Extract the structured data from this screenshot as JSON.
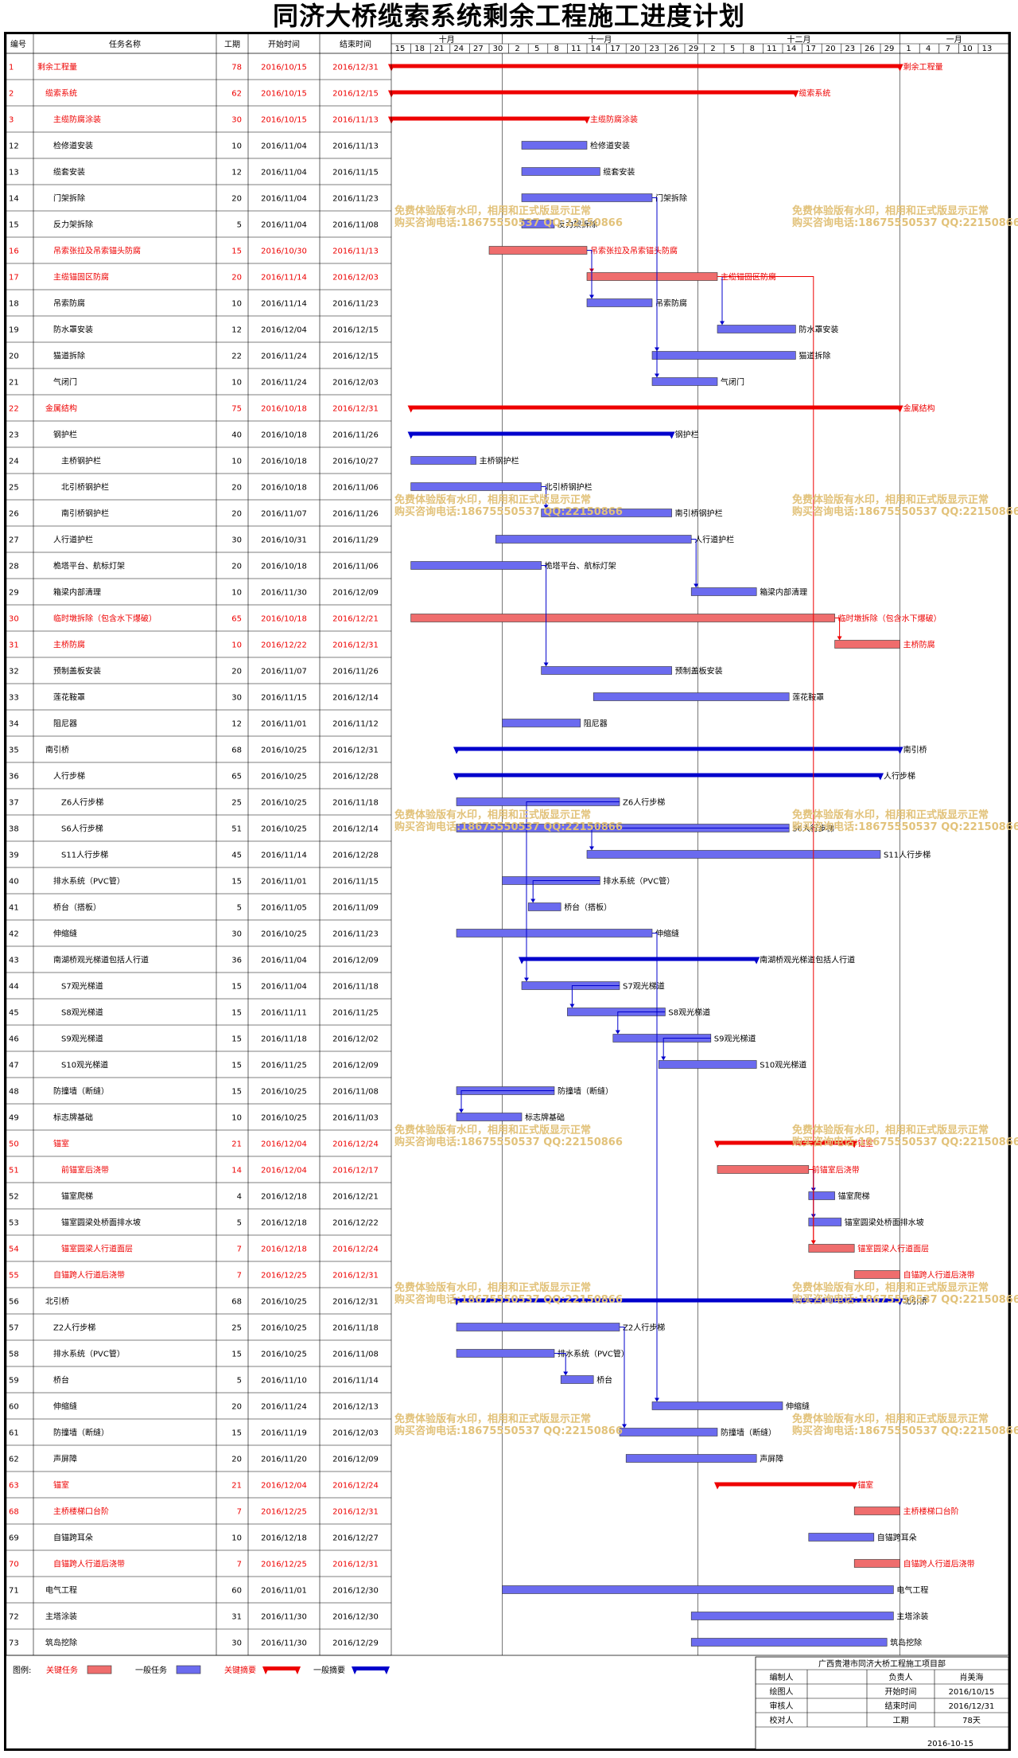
{
  "page": {
    "title": "同济大桥缆索系统剩余工程施工进度计划"
  },
  "headers": {
    "id": "编号",
    "name": "任务名称",
    "duration": "工期",
    "start": "开始时间",
    "end": "结束时间"
  },
  "colors": {
    "critical_task": "#ef6d6d",
    "normal_task": "#6b6bef",
    "critical_summary": "#ee0000",
    "normal_summary": "#0000cc",
    "critical_text": "#ee0000",
    "link_red": "#ee0000",
    "link_blue": "#0000cc"
  },
  "chart_data": {
    "type": "gantt",
    "months": [
      {
        "label": "十月",
        "date": "2016-10-01"
      },
      {
        "label": "十一月",
        "date": "2016-11-01"
      },
      {
        "label": "十二月",
        "date": "2016-12-01"
      },
      {
        "label": "一月",
        "date": "2017-01-01"
      }
    ],
    "ticks": [
      {
        "label": "15",
        "date": "2016-10-15"
      },
      {
        "label": "18",
        "date": "2016-10-18"
      },
      {
        "label": "21",
        "date": "2016-10-21"
      },
      {
        "label": "24",
        "date": "2016-10-24"
      },
      {
        "label": "27",
        "date": "2016-10-27"
      },
      {
        "label": "30",
        "date": "2016-10-30"
      },
      {
        "label": "2",
        "date": "2016-11-02"
      },
      {
        "label": "5",
        "date": "2016-11-05"
      },
      {
        "label": "8",
        "date": "2016-11-08"
      },
      {
        "label": "11",
        "date": "2016-11-11"
      },
      {
        "label": "14",
        "date": "2016-11-14"
      },
      {
        "label": "17",
        "date": "2016-11-17"
      },
      {
        "label": "20",
        "date": "2016-11-20"
      },
      {
        "label": "23",
        "date": "2016-11-23"
      },
      {
        "label": "26",
        "date": "2016-11-26"
      },
      {
        "label": "29",
        "date": "2016-11-29"
      },
      {
        "label": "2",
        "date": "2016-12-02"
      },
      {
        "label": "5",
        "date": "2016-12-05"
      },
      {
        "label": "8",
        "date": "2016-12-08"
      },
      {
        "label": "11",
        "date": "2016-12-11"
      },
      {
        "label": "14",
        "date": "2016-12-14"
      },
      {
        "label": "17",
        "date": "2016-12-17"
      },
      {
        "label": "20",
        "date": "2016-12-20"
      },
      {
        "label": "23",
        "date": "2016-12-23"
      },
      {
        "label": "26",
        "date": "2016-12-26"
      },
      {
        "label": "29",
        "date": "2016-12-29"
      },
      {
        "label": "1",
        "date": "2017-01-01"
      },
      {
        "label": "4",
        "date": "2017-01-04"
      },
      {
        "label": "7",
        "date": "2017-01-07"
      },
      {
        "label": "10",
        "date": "2017-01-10"
      },
      {
        "label": "13",
        "date": "2017-01-13"
      }
    ],
    "tasks": [
      {
        "id": "1",
        "name": "剩余工程量",
        "dur": "78",
        "start": "2016/10/15",
        "end": "2016/12/31",
        "kind": "cs",
        "indent": 0
      },
      {
        "id": "2",
        "name": "缆索系统",
        "dur": "62",
        "start": "2016/10/15",
        "end": "2016/12/15",
        "kind": "cs",
        "indent": 1
      },
      {
        "id": "3",
        "name": "主缆防腐涂装",
        "dur": "30",
        "start": "2016/10/15",
        "end": "2016/11/13",
        "kind": "cs",
        "indent": 2
      },
      {
        "id": "12",
        "name": "检修道安装",
        "dur": "10",
        "start": "2016/11/04",
        "end": "2016/11/13",
        "kind": "n",
        "indent": 2
      },
      {
        "id": "13",
        "name": "缆套安装",
        "dur": "12",
        "start": "2016/11/04",
        "end": "2016/11/15",
        "kind": "n",
        "indent": 2
      },
      {
        "id": "14",
        "name": "门架拆除",
        "dur": "20",
        "start": "2016/11/04",
        "end": "2016/11/23",
        "kind": "n",
        "indent": 2
      },
      {
        "id": "15",
        "name": "反力架拆除",
        "dur": "5",
        "start": "2016/11/04",
        "end": "2016/11/08",
        "kind": "n",
        "indent": 2
      },
      {
        "id": "16",
        "name": "吊索张拉及吊索锚头防腐",
        "dur": "15",
        "start": "2016/10/30",
        "end": "2016/11/13",
        "kind": "c",
        "indent": 2
      },
      {
        "id": "17",
        "name": "主缆锚固区防腐",
        "dur": "20",
        "start": "2016/11/14",
        "end": "2016/12/03",
        "kind": "c",
        "indent": 2
      },
      {
        "id": "18",
        "name": "吊索防腐",
        "dur": "10",
        "start": "2016/11/14",
        "end": "2016/11/23",
        "kind": "n",
        "indent": 2
      },
      {
        "id": "19",
        "name": "防水罩安装",
        "dur": "12",
        "start": "2016/12/04",
        "end": "2016/12/15",
        "kind": "n",
        "indent": 2
      },
      {
        "id": "20",
        "name": "猫道拆除",
        "dur": "22",
        "start": "2016/11/24",
        "end": "2016/12/15",
        "kind": "n",
        "indent": 2
      },
      {
        "id": "21",
        "name": "气闭门",
        "dur": "10",
        "start": "2016/11/24",
        "end": "2016/12/03",
        "kind": "n",
        "indent": 2
      },
      {
        "id": "22",
        "name": "金属结构",
        "dur": "75",
        "start": "2016/10/18",
        "end": "2016/12/31",
        "kind": "cs",
        "indent": 1
      },
      {
        "id": "23",
        "name": "钢护栏",
        "dur": "40",
        "start": "2016/10/18",
        "end": "2016/11/26",
        "kind": "ns",
        "indent": 2
      },
      {
        "id": "24",
        "name": "主桥钢护栏",
        "dur": "10",
        "start": "2016/10/18",
        "end": "2016/10/27",
        "kind": "n",
        "indent": 3
      },
      {
        "id": "25",
        "name": "北引桥钢护栏",
        "dur": "20",
        "start": "2016/10/18",
        "end": "2016/11/06",
        "kind": "n",
        "indent": 3
      },
      {
        "id": "26",
        "name": "南引桥钢护栏",
        "dur": "20",
        "start": "2016/11/07",
        "end": "2016/11/26",
        "kind": "n",
        "indent": 3
      },
      {
        "id": "27",
        "name": "人行道护栏",
        "dur": "30",
        "start": "2016/10/31",
        "end": "2016/11/29",
        "kind": "n",
        "indent": 2
      },
      {
        "id": "28",
        "name": "桅塔平台、航标灯架",
        "dur": "20",
        "start": "2016/10/18",
        "end": "2016/11/06",
        "kind": "n",
        "indent": 2
      },
      {
        "id": "29",
        "name": "箱梁内部清理",
        "dur": "10",
        "start": "2016/11/30",
        "end": "2016/12/09",
        "kind": "n",
        "indent": 2
      },
      {
        "id": "30",
        "name": "临时墩拆除（包含水下爆破）",
        "dur": "65",
        "start": "2016/10/18",
        "end": "2016/12/21",
        "kind": "c",
        "indent": 2
      },
      {
        "id": "31",
        "name": "主桥防腐",
        "dur": "10",
        "start": "2016/12/22",
        "end": "2016/12/31",
        "kind": "c",
        "indent": 2
      },
      {
        "id": "32",
        "name": "预制盖板安装",
        "dur": "20",
        "start": "2016/11/07",
        "end": "2016/11/26",
        "kind": "n",
        "indent": 2
      },
      {
        "id": "33",
        "name": "莲花鞍罩",
        "dur": "30",
        "start": "2016/11/15",
        "end": "2016/12/14",
        "kind": "n",
        "indent": 2
      },
      {
        "id": "34",
        "name": "阻尼器",
        "dur": "12",
        "start": "2016/11/01",
        "end": "2016/11/12",
        "kind": "n",
        "indent": 2
      },
      {
        "id": "35",
        "name": "南引桥",
        "dur": "68",
        "start": "2016/10/25",
        "end": "2016/12/31",
        "kind": "ns",
        "indent": 1
      },
      {
        "id": "36",
        "name": "人行步梯",
        "dur": "65",
        "start": "2016/10/25",
        "end": "2016/12/28",
        "kind": "ns",
        "indent": 2
      },
      {
        "id": "37",
        "name": "Z6人行步梯",
        "dur": "25",
        "start": "2016/10/25",
        "end": "2016/11/18",
        "kind": "n",
        "indent": 3
      },
      {
        "id": "38",
        "name": "S6人行步梯",
        "dur": "51",
        "start": "2016/10/25",
        "end": "2016/12/14",
        "kind": "n",
        "indent": 3
      },
      {
        "id": "39",
        "name": "S11人行步梯",
        "dur": "45",
        "start": "2016/11/14",
        "end": "2016/12/28",
        "kind": "n",
        "indent": 3
      },
      {
        "id": "40",
        "name": "排水系统（PVC管）",
        "dur": "15",
        "start": "2016/11/01",
        "end": "2016/11/15",
        "kind": "n",
        "indent": 2
      },
      {
        "id": "41",
        "name": "桥台（搭板）",
        "dur": "5",
        "start": "2016/11/05",
        "end": "2016/11/09",
        "kind": "n",
        "indent": 2
      },
      {
        "id": "42",
        "name": "伸缩缝",
        "dur": "30",
        "start": "2016/10/25",
        "end": "2016/11/23",
        "kind": "n",
        "indent": 2
      },
      {
        "id": "43",
        "name": "南湖桥观光梯道包括人行道",
        "dur": "36",
        "start": "2016/11/04",
        "end": "2016/12/09",
        "kind": "ns",
        "indent": 2
      },
      {
        "id": "44",
        "name": "S7观光梯道",
        "dur": "15",
        "start": "2016/11/04",
        "end": "2016/11/18",
        "kind": "n",
        "indent": 3
      },
      {
        "id": "45",
        "name": "S8观光梯道",
        "dur": "15",
        "start": "2016/11/11",
        "end": "2016/11/25",
        "kind": "n",
        "indent": 3
      },
      {
        "id": "46",
        "name": "S9观光梯道",
        "dur": "15",
        "start": "2016/11/18",
        "end": "2016/12/02",
        "kind": "n",
        "indent": 3
      },
      {
        "id": "47",
        "name": "S10观光梯道",
        "dur": "15",
        "start": "2016/11/25",
        "end": "2016/12/09",
        "kind": "n",
        "indent": 3
      },
      {
        "id": "48",
        "name": "防撞墙（断缝）",
        "dur": "15",
        "start": "2016/10/25",
        "end": "2016/11/08",
        "kind": "n",
        "indent": 2
      },
      {
        "id": "49",
        "name": "标志牌基础",
        "dur": "10",
        "start": "2016/10/25",
        "end": "2016/11/03",
        "kind": "n",
        "indent": 2
      },
      {
        "id": "50",
        "name": "锚室",
        "dur": "21",
        "start": "2016/12/04",
        "end": "2016/12/24",
        "kind": "cs",
        "indent": 2
      },
      {
        "id": "51",
        "name": "前锚室后浇带",
        "dur": "14",
        "start": "2016/12/04",
        "end": "2016/12/17",
        "kind": "c",
        "indent": 3
      },
      {
        "id": "52",
        "name": "锚室爬梯",
        "dur": "4",
        "start": "2016/12/18",
        "end": "2016/12/21",
        "kind": "n",
        "indent": 3
      },
      {
        "id": "53",
        "name": "锚室圆梁处桥面排水坡",
        "dur": "5",
        "start": "2016/12/18",
        "end": "2016/12/22",
        "kind": "n",
        "indent": 3
      },
      {
        "id": "54",
        "name": "锚室圆梁人行道面层",
        "dur": "7",
        "start": "2016/12/18",
        "end": "2016/12/24",
        "kind": "c",
        "indent": 3
      },
      {
        "id": "55",
        "name": "自锚跨人行道后浇带",
        "dur": "7",
        "start": "2016/12/25",
        "end": "2016/12/31",
        "kind": "c",
        "indent": 2
      },
      {
        "id": "56",
        "name": "北引桥",
        "dur": "68",
        "start": "2016/10/25",
        "end": "2016/12/31",
        "kind": "ns",
        "indent": 1
      },
      {
        "id": "57",
        "name": "Z2人行步梯",
        "dur": "25",
        "start": "2016/10/25",
        "end": "2016/11/18",
        "kind": "n",
        "indent": 2
      },
      {
        "id": "58",
        "name": "排水系统（PVC管）",
        "dur": "15",
        "start": "2016/10/25",
        "end": "2016/11/08",
        "kind": "n",
        "indent": 2
      },
      {
        "id": "59",
        "name": "桥台",
        "dur": "5",
        "start": "2016/11/10",
        "end": "2016/11/14",
        "kind": "n",
        "indent": 2
      },
      {
        "id": "60",
        "name": "伸缩缝",
        "dur": "20",
        "start": "2016/11/24",
        "end": "2016/12/13",
        "kind": "n",
        "indent": 2
      },
      {
        "id": "61",
        "name": "防撞墙（断缝）",
        "dur": "15",
        "start": "2016/11/19",
        "end": "2016/12/03",
        "kind": "n",
        "indent": 2
      },
      {
        "id": "62",
        "name": "声屏障",
        "dur": "20",
        "start": "2016/11/20",
        "end": "2016/12/09",
        "kind": "n",
        "indent": 2
      },
      {
        "id": "63",
        "name": "锚室",
        "dur": "21",
        "start": "2016/12/04",
        "end": "2016/12/24",
        "kind": "cs",
        "indent": 2
      },
      {
        "id": "68",
        "name": "主桥楼梯口台阶",
        "dur": "7",
        "start": "2016/12/25",
        "end": "2016/12/31",
        "kind": "c",
        "indent": 2
      },
      {
        "id": "69",
        "name": "自锚跨耳朵",
        "dur": "10",
        "start": "2016/12/18",
        "end": "2016/12/27",
        "kind": "n",
        "indent": 2
      },
      {
        "id": "70",
        "name": "自锚跨人行道后浇带",
        "dur": "7",
        "start": "2016/12/25",
        "end": "2016/12/31",
        "kind": "c",
        "indent": 2
      },
      {
        "id": "71",
        "name": "电气工程",
        "dur": "60",
        "start": "2016/11/01",
        "end": "2016/12/30",
        "kind": "n",
        "indent": 1
      },
      {
        "id": "72",
        "name": "主塔涂装",
        "dur": "31",
        "start": "2016/11/30",
        "end": "2016/12/30",
        "kind": "n",
        "indent": 1
      },
      {
        "id": "73",
        "name": "筑岛挖除",
        "dur": "30",
        "start": "2016/11/30",
        "end": "2016/12/29",
        "kind": "n",
        "indent": 1
      }
    ],
    "links": [
      {
        "from": "16",
        "to": "17",
        "color": "red"
      },
      {
        "from": "17",
        "to": "19",
        "color": "blue"
      },
      {
        "from": "16",
        "to": "18",
        "color": "blue"
      },
      {
        "from": "14",
        "to": "20",
        "color": "blue"
      },
      {
        "from": "14",
        "to": "21",
        "color": "blue"
      },
      {
        "from": "17",
        "to": "54",
        "color": "red"
      },
      {
        "from": "25",
        "to": "26",
        "color": "blue"
      },
      {
        "from": "27",
        "to": "29",
        "color": "blue"
      },
      {
        "from": "28",
        "to": "32",
        "color": "blue"
      },
      {
        "from": "30",
        "to": "31",
        "color": "red"
      },
      {
        "from": "38",
        "to": "39",
        "color": "blue"
      },
      {
        "from": "40",
        "to": "41",
        "color": "blue"
      },
      {
        "from": "37",
        "to": "44",
        "color": "blue"
      },
      {
        "from": "44",
        "to": "45",
        "color": "blue"
      },
      {
        "from": "45",
        "to": "46",
        "color": "blue"
      },
      {
        "from": "46",
        "to": "47",
        "color": "blue"
      },
      {
        "from": "48",
        "to": "49",
        "color": "blue"
      },
      {
        "from": "51",
        "to": "52",
        "color": "blue"
      },
      {
        "from": "51",
        "to": "53",
        "color": "blue"
      },
      {
        "from": "51",
        "to": "54",
        "color": "red"
      },
      {
        "from": "58",
        "to": "59",
        "color": "blue"
      },
      {
        "from": "42",
        "to": "60",
        "color": "blue"
      },
      {
        "from": "57",
        "to": "61",
        "color": "blue"
      }
    ]
  },
  "legend": {
    "prefix": "图例:",
    "items": [
      {
        "label": "关键任务",
        "kind": "c"
      },
      {
        "label": "一般任务",
        "kind": "n"
      },
      {
        "label": "关键摘要",
        "kind": "cs"
      },
      {
        "label": "一般摘要",
        "kind": "ns"
      }
    ]
  },
  "info": {
    "org": "广西贵港市同济大桥工程施工项目部",
    "rows": [
      [
        "编制人",
        "",
        "负责人",
        "肖美海"
      ],
      [
        "绘图人",
        "",
        "开始时间",
        "2016/10/15"
      ],
      [
        "审核人",
        "",
        "结束时间",
        "2016/12/31"
      ],
      [
        "校对人",
        "",
        "工期",
        "78天"
      ]
    ],
    "date": "2016-10-15"
  },
  "watermark": {
    "line1": "免费体验版有水印，相用和正式版显示正常",
    "line2": "购买咨询电话:18675550537 QQ:22150866"
  }
}
